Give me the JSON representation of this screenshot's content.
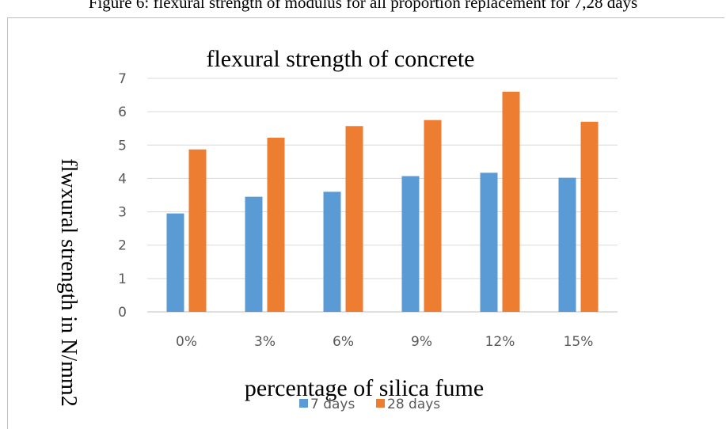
{
  "caption": "Figure 6: flexural strength of modulus for all proportion replacement for 7,28 days",
  "chart_data": {
    "type": "bar",
    "title": "flexural strength of concrete",
    "xlabel": "percentage of silica  fume",
    "ylabel": "flwxural strength in N/mm2",
    "categories": [
      "0%",
      "3%",
      "6%",
      "9%",
      "12%",
      "15%"
    ],
    "yticks": [
      "0",
      "1",
      "2",
      "3",
      "4",
      "5",
      "6",
      "7"
    ],
    "ylim": [
      0,
      7
    ],
    "grid": true,
    "legend_position": "bottom",
    "series": [
      {
        "name": "7 days",
        "color": "#5b9bd5",
        "values": [
          2.95,
          3.45,
          3.6,
          4.07,
          4.17,
          4.02
        ]
      },
      {
        "name": "28 days",
        "color": "#ed7d31",
        "values": [
          4.87,
          5.22,
          5.57,
          5.75,
          6.6,
          5.7
        ]
      }
    ]
  }
}
